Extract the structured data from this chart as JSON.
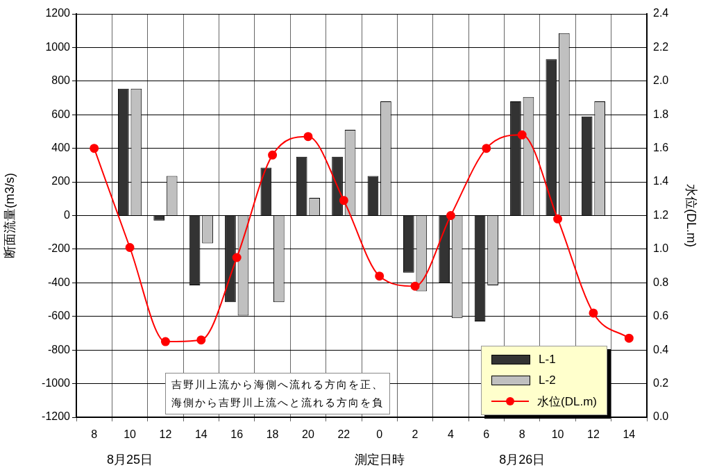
{
  "chart_data": {
    "type": "bar",
    "categories": [
      "8",
      "10",
      "12",
      "14",
      "16",
      "18",
      "20",
      "22",
      "0",
      "2",
      "4",
      "6",
      "8",
      "10",
      "12",
      "14"
    ],
    "xlabel": "測定日時",
    "ylabel": "断面流量(m3/s)",
    "y2label": "水位(DL.m)",
    "series": [
      {
        "name": "L-1",
        "color": "#333333",
        "values": [
          null,
          755,
          -30,
          -415,
          -515,
          285,
          350,
          350,
          235,
          -340,
          -400,
          -630,
          680,
          930,
          590,
          null
        ]
      },
      {
        "name": "L-2",
        "color": "#c0c0c0",
        "values": [
          null,
          755,
          235,
          -165,
          -595,
          -515,
          105,
          510,
          680,
          -450,
          -610,
          -415,
          705,
          1085,
          680,
          null
        ]
      },
      {
        "name": "水位(DL.m)",
        "type": "line",
        "axis": "y2",
        "color": "#ff0000",
        "marker": "circle",
        "line_style": "solid",
        "values": [
          1.6,
          1.01,
          0.45,
          0.46,
          0.95,
          1.56,
          1.67,
          1.29,
          0.84,
          0.78,
          1.2,
          1.6,
          1.68,
          1.18,
          0.62,
          0.47
        ]
      }
    ],
    "ylim": [
      -1200,
      1200
    ],
    "yticks": [
      -1200,
      -1000,
      -800,
      -600,
      -400,
      -200,
      0,
      200,
      400,
      600,
      800,
      1000,
      1200
    ],
    "y2lim": [
      0,
      2.4
    ],
    "y2ticks": [
      {
        "value": 0,
        "label": "0.0"
      },
      {
        "value": 0.2,
        "label": "0.2"
      },
      {
        "value": 0.4,
        "label": "0.4"
      },
      {
        "value": 0.6,
        "label": "0.6"
      },
      {
        "value": 0.8,
        "label": "0.8"
      },
      {
        "value": 1,
        "label": "1.0"
      },
      {
        "value": 1.2,
        "label": "1.2"
      },
      {
        "value": 1.4,
        "label": "1.4"
      },
      {
        "value": 1.6,
        "label": "1.6"
      },
      {
        "value": 1.8,
        "label": "1.8"
      },
      {
        "value": 2,
        "label": "2.0"
      },
      {
        "value": 2.2,
        "label": "2.2"
      },
      {
        "value": 2.4,
        "label": "2.4"
      }
    ],
    "grid": true,
    "legend": "bottom right",
    "annotations": [
      "吉野川上流から海側へ流れる方向を正、",
      "海側から吉野川上流へと流れる方向を負",
      "8月25日",
      "8月26日"
    ]
  }
}
